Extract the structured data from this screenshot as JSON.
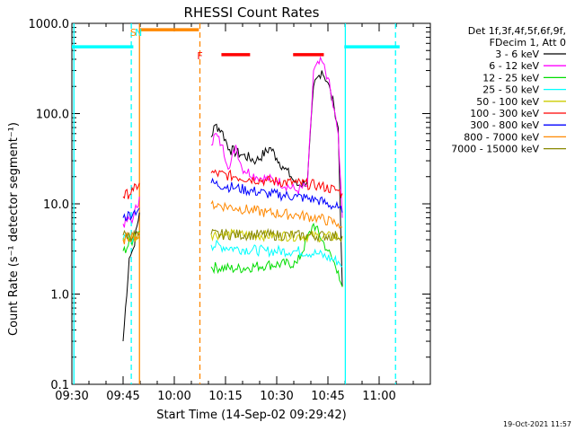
{
  "chart_data": {
    "type": "line",
    "title": "RHESSI Count Rates",
    "xlabel": "Start Time (14-Sep-02 09:29:42)",
    "ylabel": "Count Rate (s⁻¹ detector segment⁻¹)",
    "y_scale": "log",
    "ylim": [
      0.1,
      1000
    ],
    "y_ticks": [
      "0.1",
      "1.0",
      "10.0",
      "100.0",
      "1000.0"
    ],
    "x_ticks": [
      "09:30",
      "09:45",
      "10:00",
      "10:15",
      "10:30",
      "10:45",
      "11:00"
    ],
    "timestamp": "19-Oct-2021 11:57",
    "legend": {
      "position": "top-right",
      "header": [
        "Det 1f,3f,4f,5f,6f,9f,",
        "FDecim 1, Att 0"
      ]
    },
    "series": [
      {
        "name": "3 - 6 keV",
        "color": "#000000",
        "x": [
          9.75,
          9.78,
          9.8,
          9.83,
          10.18,
          10.2,
          10.23,
          10.27,
          10.33,
          10.4,
          10.47,
          10.5,
          10.53,
          10.57,
          10.6,
          10.65,
          10.68,
          10.72,
          10.75,
          10.78,
          10.8,
          10.82
        ],
        "y": [
          0.3,
          2.5,
          3.2,
          8,
          55,
          75,
          65,
          40,
          35,
          30,
          42,
          32,
          26,
          20,
          16,
          18,
          200,
          300,
          220,
          120,
          70,
          1.2
        ]
      },
      {
        "name": "6 - 12 keV",
        "color": "#ff00ff",
        "x": [
          9.75,
          9.8,
          9.83,
          10.18,
          10.2,
          10.23,
          10.27,
          10.3,
          10.33,
          10.4,
          10.5,
          10.6,
          10.65,
          10.68,
          10.72,
          10.75,
          10.8,
          10.82
        ],
        "y": [
          6,
          7,
          12,
          45,
          60,
          45,
          25,
          45,
          25,
          20,
          18,
          14,
          16,
          300,
          380,
          250,
          60,
          7
        ]
      },
      {
        "name": "12 - 25 keV",
        "color": "#00dd00",
        "x": [
          9.75,
          9.8,
          9.83,
          10.18,
          10.3,
          10.45,
          10.6,
          10.68,
          10.75,
          10.8,
          10.82
        ],
        "y": [
          3,
          4,
          5,
          2,
          1.9,
          2.1,
          2.2,
          6,
          3,
          1.8,
          1.2
        ]
      },
      {
        "name": "25 - 50 keV",
        "color": "#00ffff",
        "x": [
          9.75,
          9.8,
          9.83,
          10.18,
          10.3,
          10.45,
          10.6,
          10.7,
          10.8,
          10.82
        ],
        "y": [
          4,
          4.2,
          4.5,
          3.5,
          3.2,
          3,
          3,
          2.8,
          2.3,
          2
        ]
      },
      {
        "name": "50 - 100 keV",
        "color": "#cccc00",
        "x": [
          9.75,
          9.83,
          10.18,
          10.82
        ],
        "y": [
          4.2,
          4.4,
          4.6,
          4.3
        ]
      },
      {
        "name": "100 - 300 keV",
        "color": "#ff0000",
        "x": [
          9.75,
          9.8,
          9.83,
          10.18,
          10.3,
          10.45,
          10.6,
          10.7,
          10.8,
          10.82
        ],
        "y": [
          12,
          14,
          17,
          22,
          20,
          18,
          17,
          16,
          14,
          13
        ]
      },
      {
        "name": "300 - 800 keV",
        "color": "#0000ff",
        "x": [
          9.75,
          9.8,
          9.83,
          10.18,
          10.3,
          10.45,
          10.6,
          10.7,
          10.8,
          10.82
        ],
        "y": [
          7,
          8,
          9,
          17,
          15,
          13,
          12,
          11,
          9,
          8
        ]
      },
      {
        "name": "800 - 7000 keV",
        "color": "#ff8800",
        "x": [
          9.75,
          9.8,
          9.83,
          10.18,
          10.3,
          10.45,
          10.6,
          10.7,
          10.8,
          10.82
        ],
        "y": [
          4,
          4.5,
          4.2,
          10,
          9,
          8,
          7.5,
          7,
          6,
          5.5
        ]
      },
      {
        "name": "7000 - 15000 keV",
        "color": "#888800",
        "x": [
          9.75,
          9.83,
          10.18,
          10.82
        ],
        "y": [
          4.5,
          4.5,
          4.6,
          4.4
        ]
      }
    ],
    "annotations": [
      {
        "label": "S",
        "x": 9.8,
        "color": "#ff8800"
      },
      {
        "label": "N",
        "x": 9.825,
        "color": "#00ffff"
      },
      {
        "label": "F",
        "x": 10.125,
        "color": "#ff0000"
      }
    ],
    "state_bars": [
      {
        "color": "#00ffff",
        "x": [
          9.5,
          9.8
        ],
        "y": 550
      },
      {
        "color": "#00ffff",
        "x": [
          10.83,
          11.1
        ],
        "y": 550
      },
      {
        "color": "#ff8800",
        "x": [
          9.83,
          10.12
        ],
        "y": 850
      },
      {
        "color": "#ff0000",
        "x": [
          10.23,
          10.37
        ],
        "y": 450
      },
      {
        "color": "#ff0000",
        "x": [
          10.58,
          10.73
        ],
        "y": 450
      }
    ],
    "vertical_markers": [
      {
        "x": 9.51,
        "color": "#00ffff",
        "style": "solid"
      },
      {
        "x": 9.79,
        "color": "#00ffff",
        "style": "dashed"
      },
      {
        "x": 9.83,
        "color": "#ff8800",
        "style": "solid"
      },
      {
        "x": 10.125,
        "color": "#ff8800",
        "style": "dashed"
      },
      {
        "x": 10.835,
        "color": "#00ffff",
        "style": "solid"
      },
      {
        "x": 11.08,
        "color": "#00ffff",
        "style": "dashed"
      }
    ]
  }
}
